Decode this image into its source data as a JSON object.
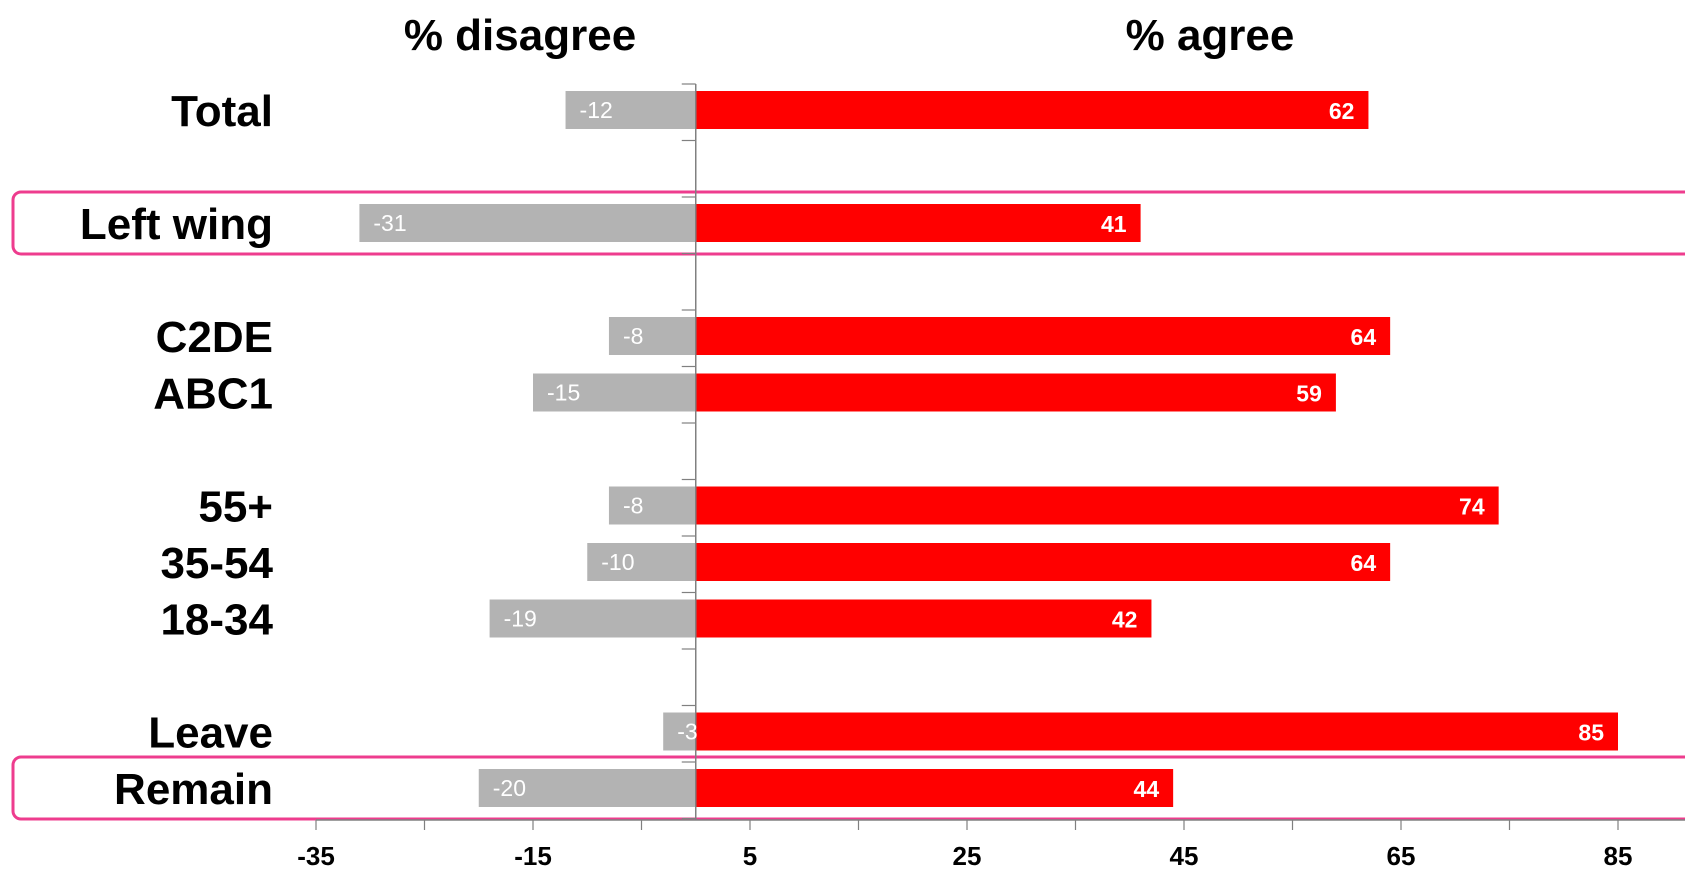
{
  "chart_data": {
    "type": "bar",
    "orientation": "horizontal",
    "stacked": "diverging",
    "headers": {
      "negative": "% disagree",
      "positive": "% agree"
    },
    "categories": [
      "Total",
      "Left wing",
      "C2DE",
      "ABC1",
      "55+",
      "35-54",
      "18-34",
      "Leave",
      "Remain"
    ],
    "series": [
      {
        "key": "disagree",
        "values": [
          -12,
          -31,
          -8,
          -15,
          -8,
          -10,
          -19,
          -3,
          -20
        ]
      },
      {
        "key": "agree",
        "values": [
          62,
          41,
          64,
          59,
          74,
          64,
          42,
          85,
          44
        ]
      }
    ],
    "highlighted": [
      "Left wing",
      "Remain"
    ],
    "xlim": [
      -35,
      90
    ],
    "xticks": [
      -35,
      -15,
      5,
      25,
      45,
      65,
      85
    ],
    "tick_labels": [
      "-35",
      "-15",
      "5",
      "25",
      "45",
      "65",
      "85"
    ],
    "grid": false,
    "colors": {
      "disagree": "#b3b3b3",
      "agree": "#ff0000",
      "highlight": "#ee3c8e",
      "axis": "#808080"
    }
  }
}
